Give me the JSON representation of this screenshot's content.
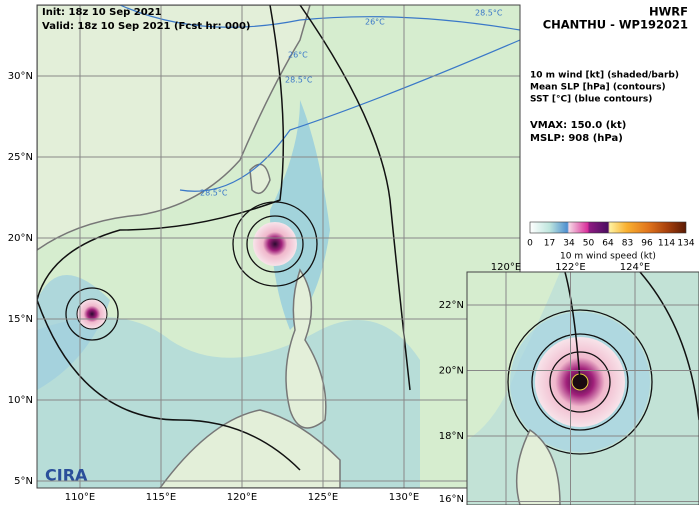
{
  "header": {
    "init": "Init:  18z 10 Sep 2021",
    "valid": "Valid: 18z 10 Sep 2021 (Fcst hr: 000)"
  },
  "model": "HWRF",
  "storm": "CHANTHU - WP192021",
  "legend": [
    "10 m wind [kt] (shaded/barb)",
    "Mean SLP [hPa] (contours)",
    "SST [°C] (blue contours)"
  ],
  "vmax": "VMAX: 150.0 (kt)",
  "mslp": "MSLP:  908 (hPa)",
  "colorbar": {
    "ticks": [
      "0",
      "17",
      "34",
      "50",
      "64",
      "83",
      "96",
      "114",
      "134"
    ],
    "label": "10 m wind speed (kt)"
  },
  "main_map": {
    "lat_labels": [
      "30°N",
      "25°N",
      "20°N",
      "15°N",
      "10°N",
      "5°N"
    ],
    "lon_labels": [
      "110°E",
      "115°E",
      "120°E",
      "125°E",
      "130°E"
    ],
    "sst_labels": [
      "26°C",
      "26°C",
      "28.5°C",
      "28.5°C",
      "28.5°C"
    ]
  },
  "inset": {
    "lat_labels": [
      "22°N",
      "20°N",
      "18°N",
      "16°N"
    ],
    "lon_labels": [
      "120°E",
      "122°E",
      "124°E"
    ]
  },
  "logo": "CIRA"
}
